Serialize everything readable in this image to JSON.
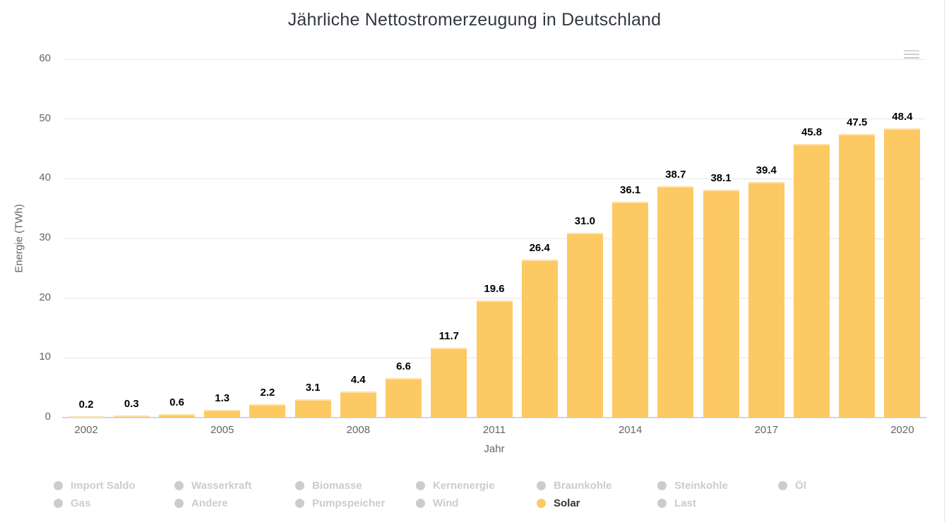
{
  "chart_data": {
    "type": "bar",
    "title": "Jährliche Nettostromerzeugung in Deutschland",
    "xlabel": "Jahr",
    "ylabel": "Energie (TWh)",
    "ylim": [
      0,
      60
    ],
    "yticks": [
      0,
      10,
      20,
      30,
      40,
      50,
      60
    ],
    "xticks": [
      2002,
      2005,
      2008,
      2011,
      2014,
      2017,
      2020
    ],
    "grid": true,
    "legend_position": "bottom",
    "series": [
      {
        "name": "Solar",
        "color": "#FDC963",
        "x": [
          2002,
          2003,
          2004,
          2005,
          2006,
          2007,
          2008,
          2009,
          2010,
          2011,
          2012,
          2013,
          2014,
          2015,
          2016,
          2017,
          2018,
          2019,
          2020
        ],
        "values": [
          0.2,
          0.3,
          0.6,
          1.3,
          2.2,
          3.1,
          4.4,
          6.6,
          11.7,
          19.6,
          26.4,
          31.0,
          36.1,
          38.7,
          38.1,
          39.4,
          45.8,
          47.5,
          48.4
        ],
        "labels": [
          "0.2",
          "0.3",
          "0.6",
          "1.3",
          "2.2",
          "3.1",
          "4.4",
          "6.6",
          "11.7",
          "19.6",
          "26.4",
          "31.0",
          "36.1",
          "38.7",
          "38.1",
          "39.4",
          "45.8",
          "47.5",
          "48.4"
        ]
      }
    ]
  },
  "legend": {
    "items": [
      {
        "label": "Import Saldo",
        "active": false
      },
      {
        "label": "Wasserkraft",
        "active": false
      },
      {
        "label": "Biomasse",
        "active": false
      },
      {
        "label": "Kernenergie",
        "active": false
      },
      {
        "label": "Braunkohle",
        "active": false
      },
      {
        "label": "Steinkohle",
        "active": false
      },
      {
        "label": "Öl",
        "active": false
      },
      {
        "label": "Gas",
        "active": false
      },
      {
        "label": "Andere",
        "active": false
      },
      {
        "label": "Pumpspeicher",
        "active": false
      },
      {
        "label": "Wind",
        "active": false
      },
      {
        "label": "Solar",
        "active": true
      },
      {
        "label": "Last",
        "active": false
      }
    ],
    "inactive_color": "#cccccc",
    "active_text_color": "#333333"
  },
  "colors": {
    "bar": "#FDC963",
    "grid": "#e6e6e6",
    "axis_line": "#ccd6eb",
    "tick_text": "#666666",
    "title_text": "#333940",
    "data_label": "#000000"
  },
  "icons": {
    "context_menu": "hamburger-menu"
  }
}
